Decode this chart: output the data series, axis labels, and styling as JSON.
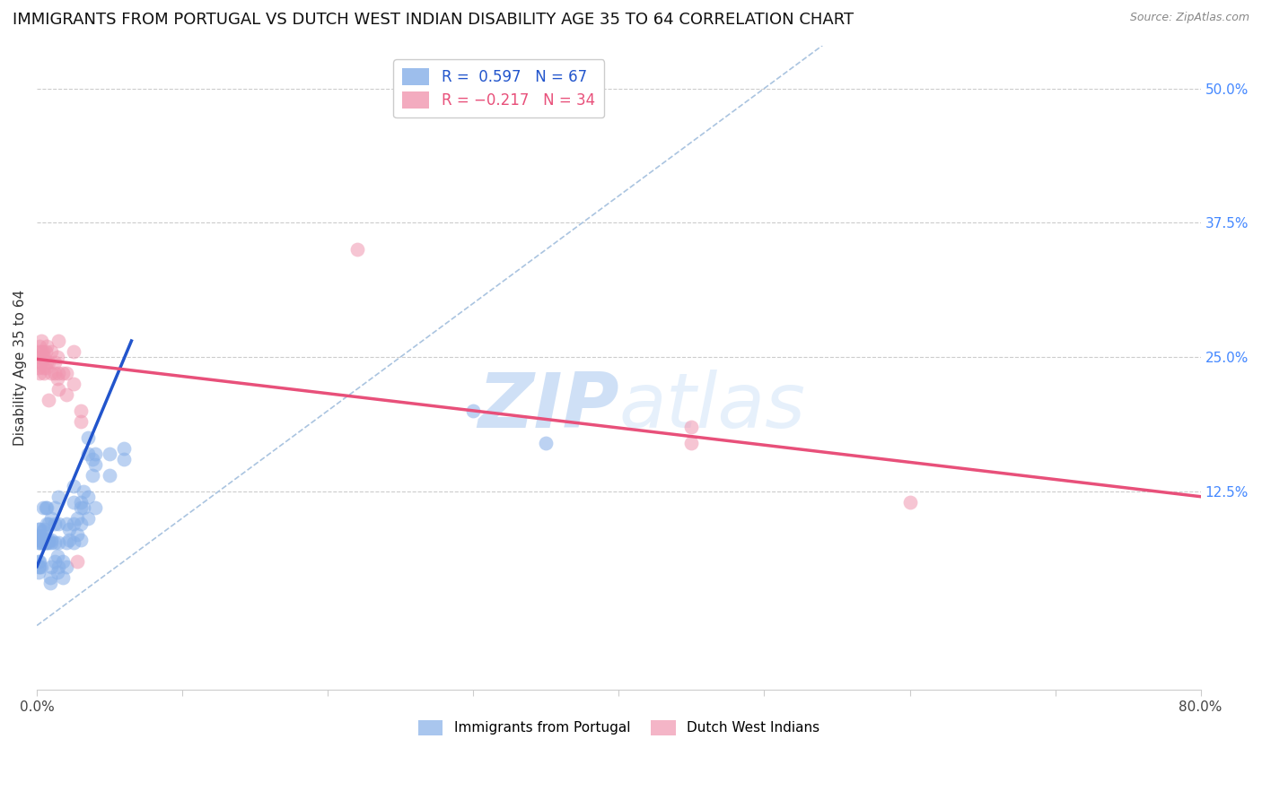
{
  "title": "IMMIGRANTS FROM PORTUGAL VS DUTCH WEST INDIAN DISABILITY AGE 35 TO 64 CORRELATION CHART",
  "source": "Source: ZipAtlas.com",
  "ylabel": "Disability Age 35 to 64",
  "xlim": [
    0.0,
    0.8
  ],
  "ylim": [
    -0.06,
    0.54
  ],
  "yticks_right": [
    0.125,
    0.25,
    0.375,
    0.5
  ],
  "yticklabels_right": [
    "12.5%",
    "25.0%",
    "37.5%",
    "50.0%"
  ],
  "blue_color": "#85aee8",
  "pink_color": "#f096b0",
  "blue_line_color": "#2255cc",
  "pink_line_color": "#e8507a",
  "diagonal_color": "#aac4e0",
  "watermark_zip": "ZIP",
  "watermark_atlas": "atlas",
  "title_fontsize": 13,
  "label_fontsize": 11,
  "tick_fontsize": 11,
  "blue_scatter": [
    [
      0.001,
      0.077
    ],
    [
      0.001,
      0.08
    ],
    [
      0.001,
      0.083
    ],
    [
      0.001,
      0.09
    ],
    [
      0.001,
      0.05
    ],
    [
      0.001,
      0.055
    ],
    [
      0.001,
      0.06
    ],
    [
      0.002,
      0.077
    ],
    [
      0.002,
      0.08
    ],
    [
      0.002,
      0.083
    ],
    [
      0.002,
      0.09
    ],
    [
      0.002,
      0.055
    ],
    [
      0.002,
      0.06
    ],
    [
      0.003,
      0.077
    ],
    [
      0.003,
      0.08
    ],
    [
      0.003,
      0.083
    ],
    [
      0.003,
      0.055
    ],
    [
      0.004,
      0.077
    ],
    [
      0.004,
      0.08
    ],
    [
      0.004,
      0.088
    ],
    [
      0.004,
      0.11
    ],
    [
      0.005,
      0.077
    ],
    [
      0.005,
      0.08
    ],
    [
      0.005,
      0.083
    ],
    [
      0.005,
      0.09
    ],
    [
      0.006,
      0.077
    ],
    [
      0.006,
      0.08
    ],
    [
      0.006,
      0.11
    ],
    [
      0.007,
      0.077
    ],
    [
      0.007,
      0.095
    ],
    [
      0.007,
      0.11
    ],
    [
      0.008,
      0.077
    ],
    [
      0.008,
      0.08
    ],
    [
      0.008,
      0.095
    ],
    [
      0.009,
      0.04
    ],
    [
      0.009,
      0.045
    ],
    [
      0.01,
      0.055
    ],
    [
      0.01,
      0.077
    ],
    [
      0.01,
      0.08
    ],
    [
      0.01,
      0.1
    ],
    [
      0.012,
      0.06
    ],
    [
      0.012,
      0.077
    ],
    [
      0.012,
      0.095
    ],
    [
      0.012,
      0.11
    ],
    [
      0.014,
      0.05
    ],
    [
      0.014,
      0.065
    ],
    [
      0.015,
      0.055
    ],
    [
      0.015,
      0.077
    ],
    [
      0.015,
      0.095
    ],
    [
      0.015,
      0.12
    ],
    [
      0.018,
      0.045
    ],
    [
      0.018,
      0.06
    ],
    [
      0.02,
      0.055
    ],
    [
      0.02,
      0.077
    ],
    [
      0.02,
      0.095
    ],
    [
      0.022,
      0.08
    ],
    [
      0.022,
      0.09
    ],
    [
      0.025,
      0.077
    ],
    [
      0.025,
      0.095
    ],
    [
      0.025,
      0.115
    ],
    [
      0.025,
      0.13
    ],
    [
      0.028,
      0.085
    ],
    [
      0.028,
      0.1
    ],
    [
      0.03,
      0.08
    ],
    [
      0.03,
      0.095
    ],
    [
      0.03,
      0.11
    ],
    [
      0.03,
      0.115
    ],
    [
      0.032,
      0.11
    ],
    [
      0.032,
      0.125
    ],
    [
      0.035,
      0.1
    ],
    [
      0.035,
      0.12
    ],
    [
      0.035,
      0.16
    ],
    [
      0.035,
      0.175
    ],
    [
      0.038,
      0.14
    ],
    [
      0.038,
      0.155
    ],
    [
      0.04,
      0.11
    ],
    [
      0.04,
      0.15
    ],
    [
      0.04,
      0.16
    ],
    [
      0.05,
      0.14
    ],
    [
      0.05,
      0.16
    ],
    [
      0.06,
      0.155
    ],
    [
      0.06,
      0.165
    ],
    [
      0.3,
      0.2
    ],
    [
      0.35,
      0.17
    ]
  ],
  "pink_scatter": [
    [
      0.001,
      0.24
    ],
    [
      0.001,
      0.25
    ],
    [
      0.001,
      0.255
    ],
    [
      0.002,
      0.235
    ],
    [
      0.002,
      0.245
    ],
    [
      0.002,
      0.26
    ],
    [
      0.003,
      0.245
    ],
    [
      0.003,
      0.255
    ],
    [
      0.003,
      0.265
    ],
    [
      0.004,
      0.24
    ],
    [
      0.004,
      0.255
    ],
    [
      0.005,
      0.235
    ],
    [
      0.005,
      0.25
    ],
    [
      0.006,
      0.24
    ],
    [
      0.006,
      0.255
    ],
    [
      0.007,
      0.245
    ],
    [
      0.007,
      0.26
    ],
    [
      0.008,
      0.21
    ],
    [
      0.008,
      0.245
    ],
    [
      0.01,
      0.235
    ],
    [
      0.01,
      0.255
    ],
    [
      0.012,
      0.235
    ],
    [
      0.012,
      0.245
    ],
    [
      0.014,
      0.23
    ],
    [
      0.014,
      0.25
    ],
    [
      0.015,
      0.22
    ],
    [
      0.015,
      0.235
    ],
    [
      0.015,
      0.265
    ],
    [
      0.018,
      0.235
    ],
    [
      0.02,
      0.215
    ],
    [
      0.02,
      0.235
    ],
    [
      0.025,
      0.225
    ],
    [
      0.025,
      0.255
    ],
    [
      0.028,
      0.06
    ],
    [
      0.03,
      0.19
    ],
    [
      0.03,
      0.2
    ],
    [
      0.22,
      0.35
    ],
    [
      0.45,
      0.185
    ],
    [
      0.45,
      0.17
    ],
    [
      0.6,
      0.115
    ]
  ],
  "blue_line_x": [
    0.0,
    0.065
  ],
  "blue_line_y": [
    0.055,
    0.265
  ],
  "pink_line_x": [
    0.0,
    0.8
  ],
  "pink_line_y": [
    0.248,
    0.12
  ],
  "diag_line_x": [
    0.0,
    0.54
  ],
  "diag_line_y": [
    0.0,
    0.54
  ]
}
